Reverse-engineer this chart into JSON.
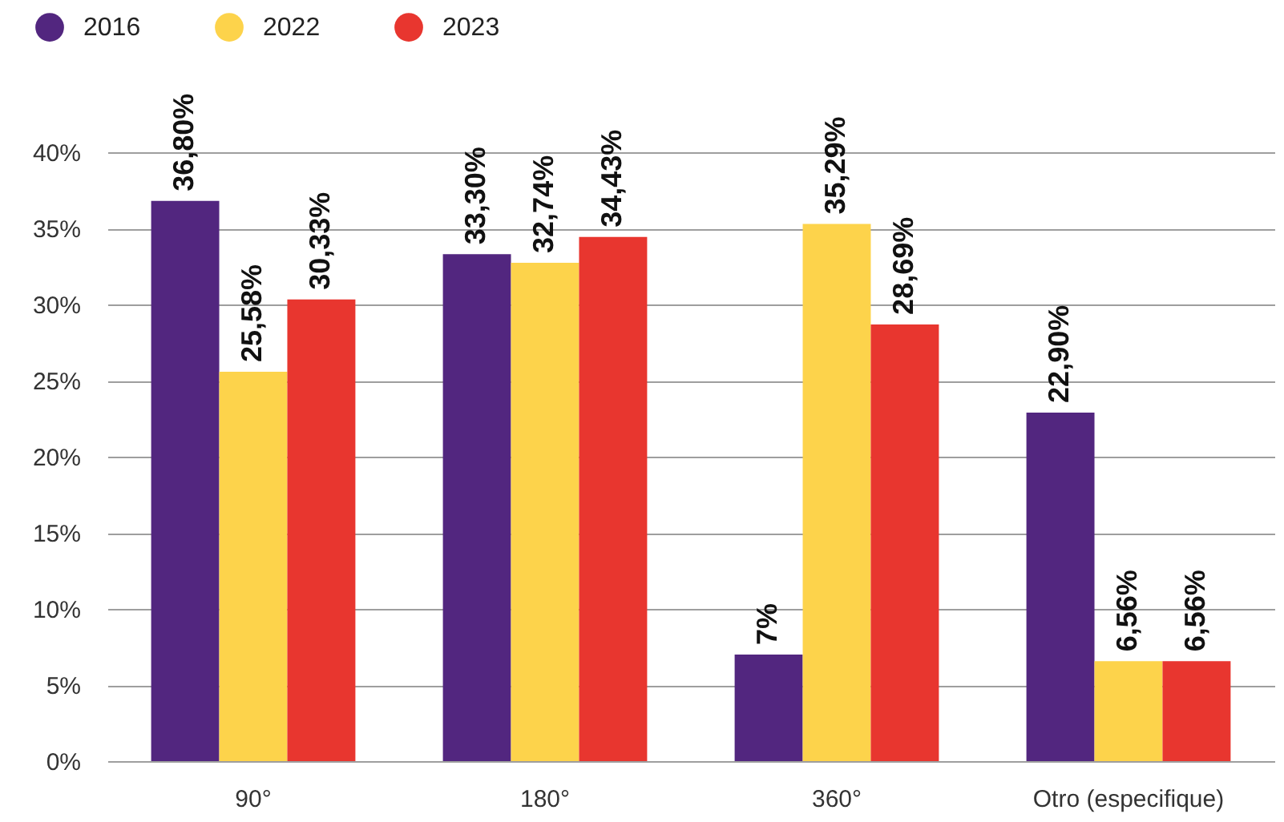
{
  "chart_data": {
    "type": "bar",
    "categories": [
      "90°",
      "180°",
      "360°",
      "Otro (especifique)"
    ],
    "series": [
      {
        "name": "2016",
        "color": "#52267f",
        "values": [
          36.8,
          33.3,
          7,
          22.9
        ],
        "value_labels": [
          "36,80%",
          "33,30%",
          "7%",
          "22,90%"
        ]
      },
      {
        "name": "2022",
        "color": "#fdd34b",
        "values": [
          25.58,
          32.74,
          35.29,
          6.56
        ],
        "value_labels": [
          "25,58%",
          "32,74%",
          "35,29%",
          "6,56%"
        ]
      },
      {
        "name": "2023",
        "color": "#e8362f",
        "values": [
          30.33,
          34.43,
          28.69,
          6.56
        ],
        "value_labels": [
          "30,33%",
          "34,43%",
          "28,69%",
          "6,56%"
        ]
      }
    ],
    "ylim": [
      0,
      40
    ],
    "yticks": [
      {
        "value": 0,
        "label": "0%"
      },
      {
        "value": 5,
        "label": "5%"
      },
      {
        "value": 10,
        "label": "10%"
      },
      {
        "value": 15,
        "label": "15%"
      },
      {
        "value": 20,
        "label": "20%"
      },
      {
        "value": 25,
        "label": "25%"
      },
      {
        "value": 30,
        "label": "30%"
      },
      {
        "value": 35,
        "label": "35%"
      },
      {
        "value": 40,
        "label": "40%"
      }
    ],
    "grid": "y",
    "legend": "top left"
  }
}
